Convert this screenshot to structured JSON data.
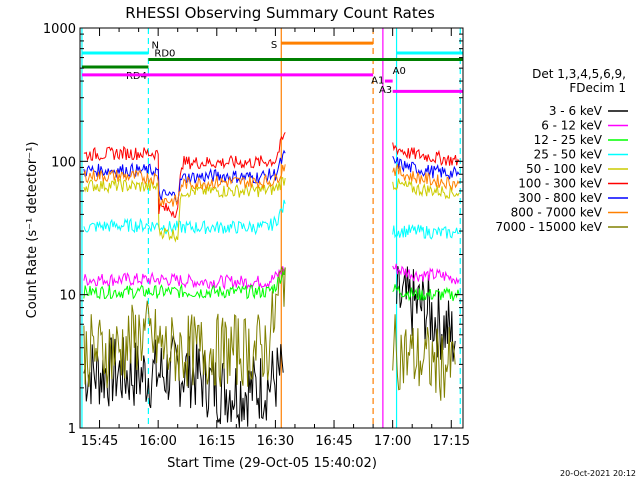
{
  "chart_data": {
    "type": "line",
    "title": "RHESSI Observing Summary Count Rates",
    "xlabel": "Start Time (29-Oct-05 15:40:02)",
    "ylabel": "Count Rate (s⁻¹ detector⁻¹)",
    "ylog": true,
    "ylim": [
      1,
      1000
    ],
    "xlim_minutes": [
      0,
      98
    ],
    "x_unit": "minutes after 15:40:02",
    "yticks": [
      {
        "label": "1000",
        "value": 1000
      },
      {
        "label": "100",
        "value": 100
      },
      {
        "label": "10",
        "value": 10
      },
      {
        "label": "1",
        "value": 1
      }
    ],
    "xticks": [
      {
        "label": "15:45",
        "minute": 5
      },
      {
        "label": "16:00",
        "minute": 20
      },
      {
        "label": "16:15",
        "minute": 35
      },
      {
        "label": "16:30",
        "minute": 50
      },
      {
        "label": "16:45",
        "minute": 65
      },
      {
        "label": "17:00",
        "minute": 80
      },
      {
        "label": "17:15",
        "minute": 95
      }
    ],
    "legend": {
      "header": [
        "Det 1,3,4,5,6,9,",
        "FDecim 1"
      ],
      "position": "right"
    },
    "series": [
      {
        "name": "3 - 6 keV",
        "color": "#000000",
        "segments": [
          {
            "x": [
              1,
              8,
              16,
              22,
              28,
              35,
              42,
              48,
              52
            ],
            "y": [
              2.6,
              2.6,
              2.5,
              2.6,
              2.7,
              2.0,
              1.9,
              2.1,
              2.6
            ]
          },
          {
            "x": [
              81,
              85,
              88,
              90,
              92,
              94,
              96
            ],
            "y": [
              9,
              8.5,
              8,
              7,
              6,
              5.5,
              4.5
            ]
          }
        ]
      },
      {
        "name": "6 - 12 keV",
        "color": "#ff00ff",
        "segments": [
          {
            "x": [
              1,
              10,
              20,
              22,
              30,
              40,
              48,
              50,
              52.5
            ],
            "y": [
              13,
              13,
              13,
              13,
              12.5,
              12.5,
              12.5,
              13.5,
              16
            ]
          },
          {
            "x": [
              80,
              86,
              92,
              97
            ],
            "y": [
              16,
              14,
              14,
              13
            ]
          }
        ]
      },
      {
        "name": "12 - 25 keV",
        "color": "#00ff00",
        "segments": [
          {
            "x": [
              1,
              10,
              20,
              22,
              30,
              40,
              48,
              50,
              52.5
            ],
            "y": [
              10.5,
              10.5,
              10.5,
              10.5,
              10.5,
              10.5,
              10.5,
              11.5,
              16
            ]
          },
          {
            "x": [
              80,
              86,
              92,
              97
            ],
            "y": [
              11,
              10,
              10,
              10
            ]
          }
        ]
      },
      {
        "name": "25 - 50 keV",
        "color": "#00ffff",
        "segments": [
          {
            "x": [
              1,
              10,
              20,
              22,
              30,
              40,
              48,
              50,
              52.5
            ],
            "y": [
              32,
              33,
              33,
              32,
              32,
              32,
              32,
              35,
              48
            ]
          },
          {
            "x": [
              80,
              86,
              92,
              97
            ],
            "y": [
              30,
              30,
              29,
              29
            ]
          }
        ]
      },
      {
        "name": "50 - 100 keV",
        "color": "#cccc00",
        "segments": [
          {
            "x": [
              1,
              10,
              20,
              20.2,
              25,
              26,
              35,
              45,
              50,
              52.5
            ],
            "y": [
              66,
              66,
              64,
              30,
              28,
              60,
              60,
              60,
              62,
              75
            ]
          },
          {
            "x": [
              80,
              86,
              92,
              97
            ],
            "y": [
              68,
              62,
              60,
              58
            ]
          }
        ]
      },
      {
        "name": "100 - 300 keV",
        "color": "#ff0000",
        "segments": [
          {
            "x": [
              1,
              10,
              20,
              20.2,
              25,
              26,
              35,
              45,
              50,
              52.5
            ],
            "y": [
              112,
              115,
              115,
              45,
              42,
              98,
              98,
              98,
              102,
              165
            ]
          },
          {
            "x": [
              80,
              84,
              90,
              97
            ],
            "y": [
              130,
              115,
              108,
              100
            ]
          }
        ]
      },
      {
        "name": "300 - 800 keV",
        "color": "#0000ff",
        "segments": [
          {
            "x": [
              1,
              10,
              20,
              20.2,
              25,
              26,
              35,
              45,
              50,
              52.5
            ],
            "y": [
              85,
              86,
              85,
              56,
              55,
              75,
              78,
              76,
              80,
              115
            ]
          },
          {
            "x": [
              80,
              84,
              90,
              97
            ],
            "y": [
              100,
              90,
              84,
              80
            ]
          }
        ]
      },
      {
        "name": "800 - 7000 keV",
        "color": "#ff8000",
        "segments": [
          {
            "x": [
              1,
              10,
              20,
              20.2,
              25,
              26,
              35,
              45,
              50,
              52.5
            ],
            "y": [
              78,
              78,
              75,
              52,
              50,
              68,
              70,
              70,
              72,
              95
            ]
          },
          {
            "x": [
              80,
              84,
              90,
              97
            ],
            "y": [
              88,
              78,
              72,
              68
            ]
          }
        ]
      },
      {
        "name": "7000 - 15000 keV",
        "color": "#808000",
        "segments": [
          {
            "x": [
              1,
              10,
              16,
              22,
              28,
              35,
              42,
              48,
              52.5
            ],
            "y": [
              3.8,
              3.8,
              5.2,
              3.8,
              3.8,
              3.8,
              3.8,
              4.0,
              16
            ]
          },
          {
            "x": [
              80,
              84,
              88,
              92,
              96
            ],
            "y": [
              3.8,
              3.5,
              3.2,
              3.0,
              3.0
            ]
          }
        ]
      }
    ],
    "vertical_lines": [
      {
        "minute": 0.5,
        "color": "#00ffff",
        "style": "solid"
      },
      {
        "minute": 17.5,
        "color": "#00ffff",
        "style": "dashed"
      },
      {
        "minute": 51.5,
        "color": "#ff8000",
        "style": "solid"
      },
      {
        "minute": 75,
        "color": "#ff8000",
        "style": "dashed"
      },
      {
        "minute": 77.5,
        "color": "#ff00ff",
        "style": "solid"
      },
      {
        "minute": 81,
        "color": "#00ffff",
        "style": "solid"
      },
      {
        "minute": 97.3,
        "color": "#00ffff",
        "style": "dashed"
      }
    ],
    "state_bars": [
      {
        "x0": 0.5,
        "x1": 17.5,
        "y": 650,
        "color": "#00ffff",
        "label": ""
      },
      {
        "x0": 17.5,
        "x1": 98,
        "y": 580,
        "color": "#008000",
        "label": "RD0",
        "label_side": "above-left"
      },
      {
        "x0": 0.5,
        "x1": 17.5,
        "y": 510,
        "color": "#008000",
        "label": "RD4",
        "label_side": "below"
      },
      {
        "x0": 0.5,
        "x1": 75,
        "y": 445,
        "color": "#ff00ff",
        "label": ""
      },
      {
        "x0": 51.5,
        "x1": 75,
        "y": 770,
        "color": "#ff8000",
        "label": "S",
        "label_side": "left"
      },
      {
        "x0": 81,
        "x1": 98,
        "y": 650,
        "color": "#00ffff",
        "label": ""
      },
      {
        "x0": 78,
        "x1": 80,
        "y": 400,
        "color": "#ff00ff",
        "label": ""
      },
      {
        "x0": 80,
        "x1": 98,
        "y": 335,
        "color": "#ff00ff",
        "label": ""
      }
    ],
    "annotations": [
      {
        "text": "N",
        "minute": 18.3,
        "value": 700,
        "color": "#00ffff"
      },
      {
        "text": "A0",
        "minute": 80,
        "value": 450,
        "color": "#ff00ff"
      },
      {
        "text": "A1",
        "minute": 74.5,
        "value": 385,
        "color": "#ff00ff"
      },
      {
        "text": "A3",
        "minute": 76.5,
        "value": 325,
        "color": "#ff00ff"
      }
    ]
  },
  "footer_date": "20-Oct-2021 20:12"
}
